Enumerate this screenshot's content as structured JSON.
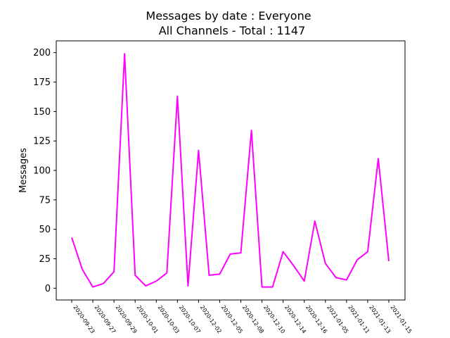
{
  "chart_data": {
    "type": "line",
    "title_line1": "Messages by date : Everyone",
    "title_line2": "All Channels - Total : 1147",
    "xlabel": "",
    "ylabel": "Messages",
    "ylim": [
      -10,
      210
    ],
    "yticks": [
      0,
      25,
      50,
      75,
      100,
      125,
      150,
      175,
      200
    ],
    "grid": false,
    "line_color": "#ff00ff",
    "xtick_labels": [
      "2020-09-23",
      "2020-09-27",
      "2020-09-29",
      "2020-10-01",
      "2020-10-03",
      "2020-10-07",
      "2020-12-02",
      "2020-12-05",
      "2020-12-08",
      "2020-12-10",
      "2020-12-14",
      "2020-12-16",
      "2021-01-05",
      "2021-01-11",
      "2021-01-13",
      "2021-01-15"
    ],
    "values": [
      43,
      16,
      1,
      4,
      14,
      199,
      11,
      2,
      6,
      13,
      163,
      2,
      117,
      11,
      12,
      29,
      30,
      134,
      1,
      1,
      31,
      19,
      6,
      57,
      21,
      9,
      7,
      24,
      31,
      110,
      23
    ]
  }
}
